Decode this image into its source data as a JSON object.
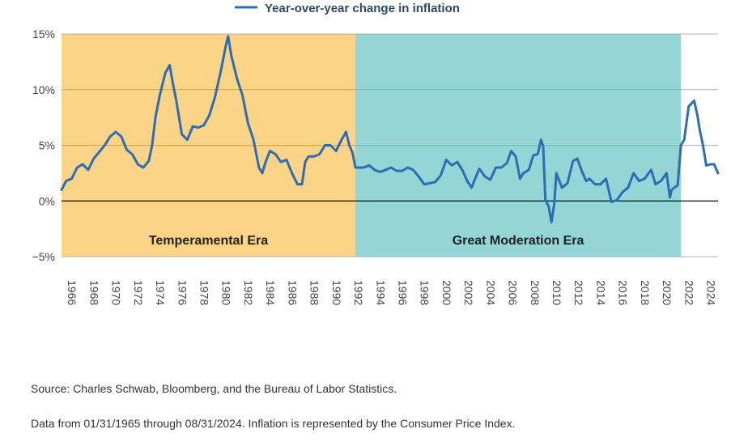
{
  "chart_data": {
    "type": "line",
    "title": "",
    "xlabel": "",
    "ylabel": "",
    "legend": {
      "entries": [
        "Year-over-year change in inflation"
      ],
      "placement": "top-center"
    },
    "series_color": "#2e6db4",
    "ylim": [
      -5,
      15
    ],
    "y_ticks": [
      {
        "value": 15,
        "label": "15%"
      },
      {
        "value": 10,
        "label": "10%"
      },
      {
        "value": 5,
        "label": "5%"
      },
      {
        "value": 0,
        "label": "0%"
      },
      {
        "value": -5,
        "label": "−5%"
      }
    ],
    "x_range": [
      1965.08,
      2024.67
    ],
    "x_ticks": [
      "1966",
      "1968",
      "1970",
      "1972",
      "1974",
      "1976",
      "1978",
      "1980",
      "1982",
      "1984",
      "1986",
      "1988",
      "1990",
      "1992",
      "1994",
      "1996",
      "1998",
      "2000",
      "2002",
      "2004",
      "2006",
      "2008",
      "2010",
      "2012",
      "2014",
      "2016",
      "2018",
      "2020",
      "2022",
      "2024"
    ],
    "grid": true,
    "regions": [
      {
        "label": "Temperamental Era",
        "start": 1965.08,
        "end": 1991.75,
        "color": "#fbd488"
      },
      {
        "label": "Great Moderation Era",
        "start": 1991.75,
        "end": 2021.3,
        "color": "#94d5d5"
      }
    ],
    "series": [
      {
        "name": "Year-over-year change in inflation",
        "x": [
          1965.08,
          1965.5,
          1966.0,
          1966.5,
          1967.0,
          1967.5,
          1968.0,
          1968.5,
          1969.0,
          1969.5,
          1970.0,
          1970.5,
          1971.0,
          1971.5,
          1972.0,
          1972.5,
          1973.0,
          1973.3,
          1973.6,
          1974.0,
          1974.5,
          1974.9,
          1975.2,
          1975.5,
          1976.0,
          1976.5,
          1977.0,
          1977.5,
          1978.0,
          1978.5,
          1979.0,
          1979.5,
          1980.0,
          1980.2,
          1980.5,
          1981.0,
          1981.5,
          1982.0,
          1982.5,
          1983.0,
          1983.3,
          1983.6,
          1984.0,
          1984.5,
          1985.0,
          1985.5,
          1986.0,
          1986.5,
          1986.9,
          1987.2,
          1987.5,
          1988.0,
          1988.5,
          1989.0,
          1989.5,
          1990.0,
          1990.5,
          1990.9,
          1991.2,
          1991.5,
          1991.75,
          1992.0,
          1992.5,
          1993.0,
          1993.5,
          1994.0,
          1994.5,
          1995.0,
          1995.5,
          1996.0,
          1996.5,
          1997.0,
          1997.5,
          1998.0,
          1998.5,
          1999.0,
          1999.5,
          2000.0,
          2000.5,
          2001.0,
          2001.5,
          2001.9,
          2002.3,
          2002.7,
          2003.0,
          2003.5,
          2004.0,
          2004.5,
          2005.0,
          2005.5,
          2005.9,
          2006.3,
          2006.7,
          2007.0,
          2007.5,
          2007.9,
          2008.3,
          2008.6,
          2008.8,
          2009.0,
          2009.3,
          2009.55,
          2009.8,
          2010.0,
          2010.5,
          2011.0,
          2011.5,
          2011.9,
          2012.3,
          2012.7,
          2013.0,
          2013.5,
          2014.0,
          2014.5,
          2015.0,
          2015.5,
          2016.0,
          2016.5,
          2017.0,
          2017.5,
          2018.0,
          2018.6,
          2019.0,
          2019.5,
          2020.0,
          2020.3,
          2020.45,
          2020.7,
          2021.0,
          2021.3,
          2021.6,
          2022.0,
          2022.5,
          2022.8,
          2023.0,
          2023.3,
          2023.6,
          2024.0,
          2024.3,
          2024.67
        ],
        "values": [
          1.0,
          1.8,
          2.0,
          3.0,
          3.3,
          2.8,
          3.8,
          4.4,
          5.0,
          5.8,
          6.2,
          5.8,
          4.6,
          4.2,
          3.3,
          3.0,
          3.6,
          5.0,
          7.5,
          9.5,
          11.5,
          12.2,
          10.5,
          9.0,
          6.0,
          5.5,
          6.7,
          6.6,
          6.8,
          7.7,
          9.3,
          11.5,
          14.0,
          14.8,
          13.0,
          11.0,
          9.5,
          7.0,
          5.5,
          3.0,
          2.5,
          3.5,
          4.5,
          4.2,
          3.5,
          3.7,
          2.5,
          1.5,
          1.5,
          3.5,
          4.0,
          4.0,
          4.2,
          5.0,
          5.0,
          4.5,
          5.5,
          6.2,
          5.0,
          4.3,
          3.0,
          3.0,
          3.0,
          3.2,
          2.8,
          2.6,
          2.8,
          3.0,
          2.7,
          2.7,
          3.0,
          2.8,
          2.2,
          1.5,
          1.6,
          1.7,
          2.3,
          3.7,
          3.2,
          3.5,
          2.7,
          1.8,
          1.2,
          2.2,
          2.9,
          2.2,
          1.9,
          3.0,
          3.0,
          3.4,
          4.5,
          4.0,
          2.0,
          2.5,
          2.8,
          4.1,
          4.2,
          5.5,
          4.9,
          0.1,
          -0.5,
          -1.9,
          -0.3,
          2.5,
          1.2,
          1.6,
          3.6,
          3.8,
          2.7,
          1.8,
          2.0,
          1.5,
          1.5,
          2.0,
          -0.1,
          0.1,
          0.8,
          1.2,
          2.5,
          1.8,
          2.0,
          2.8,
          1.5,
          1.8,
          2.5,
          0.3,
          1.0,
          1.2,
          1.4,
          5.0,
          5.5,
          8.5,
          9.0,
          7.7,
          6.4,
          5.0,
          3.2,
          3.3,
          3.3,
          2.5
        ]
      }
    ]
  },
  "footnotes": {
    "source": "Source: Charles Schwab, Bloomberg, and the Bureau of Labor Statistics.",
    "data_note": "Data from 01/31/1965 through 08/31/2024. Inflation is represented by the Consumer Price Index."
  }
}
